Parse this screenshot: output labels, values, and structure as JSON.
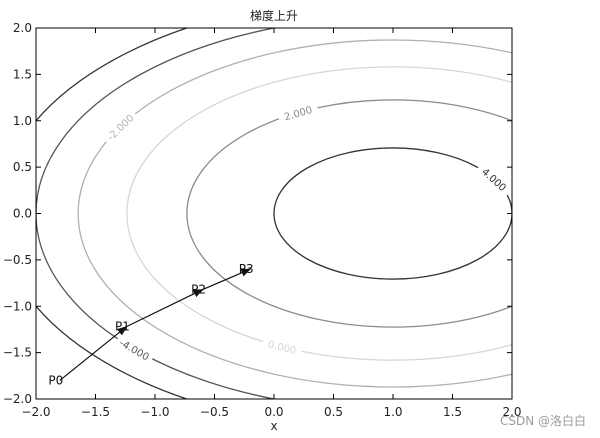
{
  "watermark": "CSDN @洛白白",
  "chart_data": {
    "type": "contour",
    "title": "梯度上升",
    "xlabel": "x",
    "ylabel": "",
    "xlim": [
      -2.0,
      2.0
    ],
    "ylim": [
      -2.0,
      2.0
    ],
    "xticks": [
      "−2.0",
      "−1.5",
      "−1.0",
      "−0.5",
      "0.0",
      "0.5",
      "1.0",
      "1.5",
      "2.0"
    ],
    "yticks": [
      "−2.0",
      "−1.5",
      "−1.0",
      "−0.5",
      "0.0",
      "0.5",
      "1.0",
      "1.5",
      "2.0"
    ],
    "grid": false,
    "function_center": [
      1.0,
      0.0
    ],
    "contours": [
      {
        "level": -6.0,
        "color": "#333333",
        "label": ""
      },
      {
        "level": -4.0,
        "color": "#555555",
        "label": "-4.000"
      },
      {
        "level": -2.0,
        "color": "#b0b0b0",
        "label": "-2.000"
      },
      {
        "level": 0.0,
        "color": "#d6d6d6",
        "label": "0.000"
      },
      {
        "level": 2.0,
        "color": "#8c8c8c",
        "label": "2.000"
      },
      {
        "level": 4.0,
        "color": "#333333",
        "label": "4.000"
      }
    ],
    "path": [
      {
        "name": "P0",
        "x": -1.8,
        "y": -1.8
      },
      {
        "name": "P1",
        "x": -1.24,
        "y": -1.22
      },
      {
        "name": "P2",
        "x": -0.6,
        "y": -0.82
      },
      {
        "name": "P3",
        "x": -0.2,
        "y": -0.6
      }
    ]
  }
}
